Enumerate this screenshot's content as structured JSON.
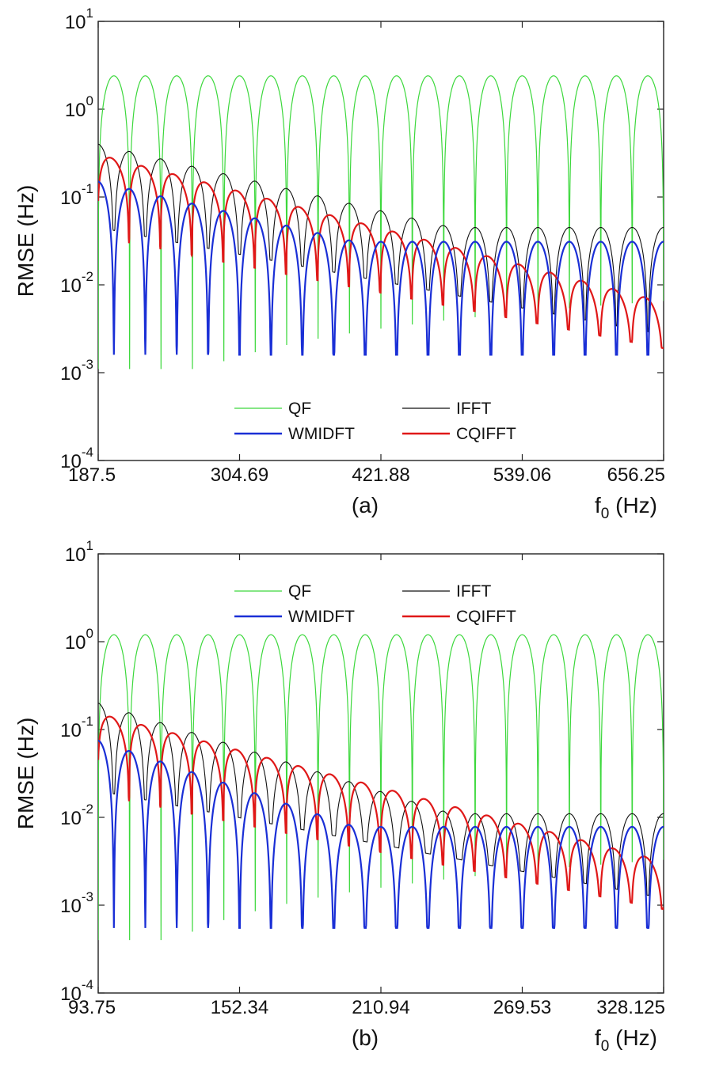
{
  "chart_data": [
    {
      "type": "line",
      "panel_label": "(a)",
      "xlabel": "f",
      "xlabel_sub": "0",
      "xlabel_unit": " (Hz)",
      "ylabel": "RMSE (Hz)",
      "yscale": "log",
      "xlim": [
        187.5,
        656.25
      ],
      "ylim": [
        0.0001,
        10
      ],
      "xticks": [
        "187.5",
        "304.69",
        "421.88",
        "539.06",
        "656.25"
      ],
      "yticks": [
        {
          "base": "10",
          "exp": "1",
          "value": 10
        },
        {
          "base": "10",
          "exp": "0",
          "value": 1
        },
        {
          "base": "10",
          "exp": "-1",
          "value": 0.1
        },
        {
          "base": "10",
          "exp": "-2",
          "value": 0.01
        },
        {
          "base": "10",
          "exp": "-3",
          "value": 0.001
        },
        {
          "base": "10",
          "exp": "-4",
          "value": 0.0001
        }
      ],
      "legend_position": "bottom-center",
      "bin_spacing": 26.04,
      "series": [
        {
          "name": "QF",
          "color": "#3cd83c",
          "model": "qf",
          "peak": 2.4,
          "min": 0.0011
        },
        {
          "name": "IFFT",
          "color": "#111111",
          "model": "ifft",
          "start": 0.4,
          "end": 0.045,
          "dip_start": 0.045,
          "dip_end": 0.0027
        },
        {
          "name": "WMIDFT",
          "color": "#1a2fd6",
          "model": "wm",
          "start": 0.15,
          "end": 0.031,
          "dip_min": 0.0016
        },
        {
          "name": "CQIFFT",
          "color": "#e01818",
          "model": "cq",
          "start": 0.36,
          "end": 0.0075,
          "dip_start": 0.035,
          "dip_end": 0.0019
        }
      ]
    },
    {
      "type": "line",
      "panel_label": "(b)",
      "xlabel": "f",
      "xlabel_sub": "0",
      "xlabel_unit": " (Hz)",
      "ylabel": "RMSE (Hz)",
      "yscale": "log",
      "xlim": [
        93.75,
        328.125
      ],
      "ylim": [
        0.0001,
        10
      ],
      "xticks": [
        "93.75",
        "152.34",
        "210.94",
        "269.53",
        "328.125"
      ],
      "yticks": [
        {
          "base": "10",
          "exp": "1",
          "value": 10
        },
        {
          "base": "10",
          "exp": "0",
          "value": 1
        },
        {
          "base": "10",
          "exp": "-1",
          "value": 0.1
        },
        {
          "base": "10",
          "exp": "-2",
          "value": 0.01
        },
        {
          "base": "10",
          "exp": "-3",
          "value": 0.001
        },
        {
          "base": "10",
          "exp": "-4",
          "value": 0.0001
        }
      ],
      "legend_position": "top-center",
      "bin_spacing": 13.02,
      "series": [
        {
          "name": "QF",
          "color": "#3cd83c",
          "model": "qf",
          "peak": 1.2,
          "min": 0.0004
        },
        {
          "name": "IFFT",
          "color": "#111111",
          "model": "ifft",
          "start": 0.2,
          "end": 0.011,
          "dip_start": 0.02,
          "dip_end": 0.0012
        },
        {
          "name": "WMIDFT",
          "color": "#1a2fd6",
          "model": "wm",
          "start": 0.075,
          "end": 0.0078,
          "dip_min": 0.00055
        },
        {
          "name": "CQIFFT",
          "color": "#e01818",
          "model": "cq",
          "start": 0.18,
          "end": 0.0037,
          "dip_start": 0.018,
          "dip_end": 0.0009
        }
      ]
    }
  ]
}
